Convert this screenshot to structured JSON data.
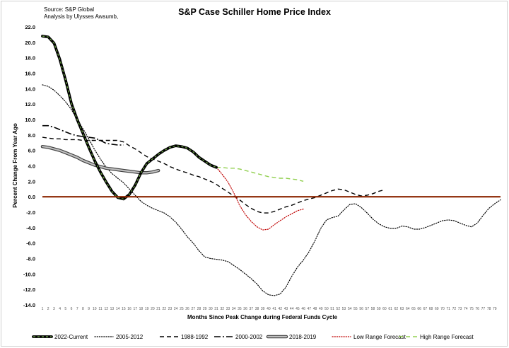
{
  "header": {
    "source_line1": "Source: S&P Global",
    "source_line2": "Analysis by Ulysses Awsumb,"
  },
  "chart_data": {
    "type": "line",
    "title": "S&P Case Schiller Home Price Index",
    "xlabel": "Months Since Peak Change during Federal Funds Cycle",
    "ylabel": "Percent Change From Year Ago",
    "ylim": [
      -14,
      22
    ],
    "xlim": [
      1,
      80
    ],
    "yticks": [
      "22.0",
      "20.0",
      "18.0",
      "16.0",
      "14.0",
      "12.0",
      "10.0",
      "8.0",
      "6.0",
      "4.0",
      "2.0",
      "0.0",
      "-2.0",
      "-4.0",
      "-6.0",
      "-8.0",
      "-10.0",
      "-12.0",
      "-14.0"
    ],
    "xticks": [
      "1",
      "2",
      "3",
      "4",
      "5",
      "6",
      "7",
      "8",
      "9",
      "10",
      "11",
      "12",
      "13",
      "14",
      "15",
      "16",
      "17",
      "18",
      "19",
      "20",
      "21",
      "22",
      "23",
      "24",
      "25",
      "26",
      "27",
      "28",
      "29",
      "30",
      "31",
      "32",
      "33",
      "34",
      "35",
      "36",
      "37",
      "38",
      "39",
      "40",
      "41",
      "42",
      "43",
      "44",
      "45",
      "46",
      "47",
      "48",
      "49",
      "50",
      "51",
      "52",
      "53",
      "54",
      "55",
      "56",
      "57",
      "58",
      "59",
      "60",
      "61",
      "62",
      "63",
      "64",
      "65",
      "66",
      "67",
      "68",
      "69",
      "70",
      "71",
      "72",
      "73",
      "74",
      "75",
      "76",
      "77",
      "78",
      "79"
    ],
    "grid": false,
    "legend_position": "bottom",
    "zero_line_color": "#8B2500",
    "series": [
      {
        "name": "2022-Current",
        "style": "thick-solid-greenblack",
        "color": "#000000",
        "x": [
          1,
          2,
          3,
          4,
          5,
          6,
          7,
          8,
          9,
          10,
          11,
          12,
          13,
          14,
          15,
          16,
          17,
          18,
          19,
          20,
          21,
          22,
          23,
          24,
          25,
          26,
          27,
          28,
          29,
          30,
          31
        ],
        "y": [
          20.8,
          20.7,
          19.9,
          17.8,
          15.1,
          12.1,
          10.0,
          8.2,
          6.4,
          4.7,
          3.2,
          1.9,
          0.7,
          -0.1,
          -0.3,
          0.3,
          1.5,
          3.1,
          4.3,
          4.9,
          5.5,
          6.0,
          6.4,
          6.6,
          6.5,
          6.3,
          5.8,
          5.1,
          4.6,
          4.1,
          3.8
        ]
      },
      {
        "name": "2005-2012",
        "style": "dotted",
        "color": "#000000",
        "x": [
          1,
          2,
          3,
          4,
          5,
          6,
          7,
          8,
          9,
          10,
          11,
          12,
          13,
          14,
          15,
          16,
          17,
          18,
          19,
          20,
          21,
          22,
          23,
          24,
          25,
          26,
          27,
          28,
          29,
          30,
          31,
          32,
          33,
          34,
          35,
          36,
          37,
          38,
          39,
          40,
          41,
          42,
          43,
          44,
          45,
          46,
          47,
          48,
          49,
          50,
          51,
          52,
          53,
          54,
          55,
          56,
          57,
          58,
          59,
          60,
          61,
          62,
          63,
          64,
          65,
          66,
          67,
          68,
          69,
          70,
          71,
          72,
          73,
          74,
          75,
          76,
          77,
          78,
          79,
          80
        ],
        "y": [
          14.5,
          14.3,
          13.8,
          13.1,
          12.3,
          11.3,
          10.0,
          8.8,
          7.5,
          6.1,
          4.9,
          3.8,
          3.0,
          2.4,
          1.8,
          1.0,
          0.2,
          -0.6,
          -1.1,
          -1.5,
          -1.8,
          -2.1,
          -2.6,
          -3.3,
          -4.2,
          -5.2,
          -6.0,
          -7.0,
          -7.8,
          -8.0,
          -8.1,
          -8.2,
          -8.4,
          -8.9,
          -9.4,
          -10.0,
          -10.6,
          -11.3,
          -12.2,
          -12.7,
          -12.8,
          -12.6,
          -11.7,
          -10.3,
          -9.1,
          -8.2,
          -7.1,
          -5.7,
          -4.1,
          -3.0,
          -2.7,
          -2.5,
          -1.7,
          -1.0,
          -0.9,
          -1.4,
          -2.1,
          -2.9,
          -3.5,
          -3.9,
          -4.1,
          -4.1,
          -3.8,
          -3.9,
          -4.2,
          -4.2,
          -4.0,
          -3.7,
          -3.4,
          -3.1,
          -3.0,
          -3.1,
          -3.4,
          -3.7,
          -3.9,
          -3.4,
          -2.4,
          -1.5,
          -0.9,
          -0.4
        ]
      },
      {
        "name": "1988-1992",
        "style": "dashed",
        "color": "#000000",
        "x": [
          1,
          2,
          3,
          4,
          5,
          6,
          7,
          8,
          9,
          10,
          11,
          12,
          13,
          14,
          15,
          16,
          17,
          18,
          19,
          20,
          21,
          22,
          23,
          24,
          25,
          26,
          27,
          28,
          29,
          30,
          31,
          32,
          33,
          34,
          35,
          36,
          37,
          38,
          39,
          40,
          41,
          42,
          43,
          44,
          45,
          46,
          47,
          48,
          49,
          50,
          51,
          52,
          53,
          54,
          55,
          56,
          57,
          58,
          59,
          60
        ],
        "y": [
          7.7,
          7.6,
          7.5,
          7.5,
          7.4,
          7.4,
          7.4,
          7.3,
          7.3,
          7.3,
          7.3,
          7.3,
          7.3,
          7.3,
          7.1,
          6.6,
          6.2,
          5.7,
          5.2,
          4.9,
          4.6,
          4.3,
          3.9,
          3.6,
          3.3,
          3.1,
          2.8,
          2.6,
          2.3,
          2.0,
          1.6,
          1.1,
          0.6,
          0.1,
          -0.4,
          -1.0,
          -1.5,
          -1.9,
          -2.1,
          -2.1,
          -1.9,
          -1.6,
          -1.3,
          -1.1,
          -0.8,
          -0.5,
          -0.3,
          -0.1,
          0.2,
          0.5,
          0.8,
          1.0,
          0.9,
          0.6,
          0.3,
          0.1,
          0.2,
          0.4,
          0.7,
          0.9
        ]
      },
      {
        "name": "2000-2002",
        "style": "dash-dot",
        "color": "#000000",
        "x": [
          1,
          2,
          3,
          4,
          5,
          6,
          7,
          8,
          9,
          10,
          11,
          12,
          13,
          14,
          15
        ],
        "y": [
          9.2,
          9.2,
          9.0,
          8.7,
          8.4,
          8.1,
          7.9,
          7.8,
          7.7,
          7.6,
          7.3,
          6.9,
          6.8,
          6.7,
          6.7
        ]
      },
      {
        "name": "2018-2019",
        "style": "thick-gray",
        "color": "#bfbfbf",
        "x": [
          1,
          2,
          3,
          4,
          5,
          6,
          7,
          8,
          9,
          10,
          11,
          12,
          13,
          14,
          15,
          16,
          17,
          18,
          19,
          20,
          21
        ],
        "y": [
          6.5,
          6.4,
          6.2,
          6.0,
          5.7,
          5.4,
          5.1,
          4.7,
          4.4,
          4.1,
          3.9,
          3.7,
          3.6,
          3.5,
          3.4,
          3.3,
          3.2,
          3.1,
          3.1,
          3.2,
          3.4
        ]
      },
      {
        "name": "Low Range Forecast",
        "style": "dotted",
        "color": "#c00000",
        "x": [
          31,
          32,
          33,
          34,
          35,
          36,
          37,
          38,
          39,
          40,
          41,
          42,
          43,
          44,
          45,
          46
        ],
        "y": [
          3.8,
          2.9,
          1.9,
          0.5,
          -1.1,
          -2.3,
          -3.2,
          -3.9,
          -4.3,
          -4.2,
          -3.6,
          -3.1,
          -2.6,
          -2.2,
          -1.8,
          -1.6
        ]
      },
      {
        "name": "High Range Forecast",
        "style": "dashed",
        "color": "#92d050",
        "x": [
          31,
          32,
          33,
          34,
          35,
          36,
          37,
          38,
          39,
          40,
          41,
          42,
          43,
          44,
          45,
          46
        ],
        "y": [
          3.8,
          3.8,
          3.7,
          3.7,
          3.6,
          3.4,
          3.2,
          3.0,
          2.8,
          2.6,
          2.5,
          2.4,
          2.4,
          2.3,
          2.2,
          2.0
        ]
      }
    ]
  }
}
